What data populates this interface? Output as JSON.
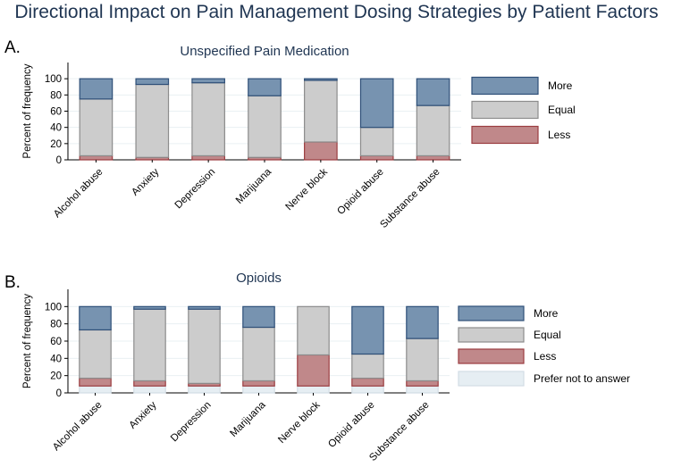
{
  "figure": {
    "title": "Directional Impact on Pain Management Dosing Strategies by Patient Factors"
  },
  "chart_data": [
    {
      "panel_label": "A.",
      "type": "bar",
      "stacked": true,
      "title": "Unspecified Pain Medication",
      "xlabel": "",
      "ylabel": "Percent of frequency",
      "ylim": [
        0,
        120
      ],
      "yticks": [
        0,
        20,
        40,
        60,
        80,
        100
      ],
      "grid": true,
      "legend_position": "right",
      "categories": [
        "Alcohol abuse",
        "Anxiety",
        "Depression",
        "Marijuana",
        "Nerve block",
        "Opioid abuse",
        "Substance abuse"
      ],
      "series": [
        {
          "name": "Less",
          "color": "#c0888a",
          "stroke": "#9b3d40",
          "values": [
            5,
            3,
            5,
            3,
            22,
            5,
            5
          ]
        },
        {
          "name": "Equal",
          "color": "#cccccc",
          "stroke": "#8c8c8c",
          "values": [
            70,
            90,
            90,
            76,
            76,
            35,
            62
          ]
        },
        {
          "name": "More",
          "color": "#7793b0",
          "stroke": "#2e4f78",
          "values": [
            25,
            7,
            5,
            21,
            2,
            60,
            33
          ]
        }
      ],
      "legend": [
        "More",
        "Equal",
        "Less"
      ]
    },
    {
      "panel_label": "B.",
      "type": "bar",
      "stacked": true,
      "title": "Opioids",
      "xlabel": "",
      "ylabel": "Percent of frequency",
      "ylim": [
        0,
        120
      ],
      "yticks": [
        0,
        20,
        40,
        60,
        80,
        100
      ],
      "grid": true,
      "legend_position": "right",
      "categories": [
        "Alcohol abuse",
        "Anxiety",
        "Depression",
        "Marijuana",
        "Nerve block",
        "Opioid abuse",
        "Substance abuse"
      ],
      "series": [
        {
          "name": "Prefer not to answer",
          "color": "#e6eef3",
          "stroke": "#d2dde5",
          "values": [
            8,
            8,
            8,
            8,
            8,
            8,
            8
          ]
        },
        {
          "name": "Less",
          "color": "#c0888a",
          "stroke": "#9b3d40",
          "values": [
            9,
            6,
            3,
            6,
            36,
            9,
            6
          ]
        },
        {
          "name": "Equal",
          "color": "#cccccc",
          "stroke": "#8c8c8c",
          "values": [
            56,
            83,
            86,
            62,
            56,
            28,
            49
          ]
        },
        {
          "name": "More",
          "color": "#7793b0",
          "stroke": "#2e4f78",
          "values": [
            27,
            3,
            3,
            24,
            0,
            55,
            37
          ]
        }
      ],
      "legend": [
        "More",
        "Equal",
        "Less",
        "Prefer not to answer"
      ]
    }
  ]
}
